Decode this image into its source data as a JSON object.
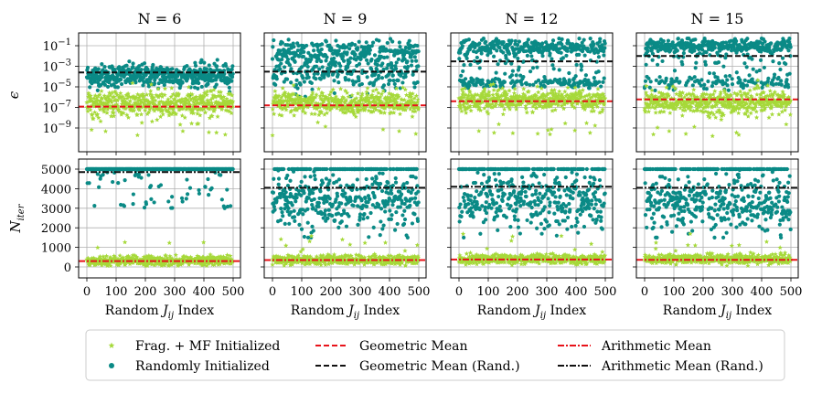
{
  "colors": {
    "frag": "#a6d93a",
    "rand": "#0a8a86",
    "mean_red": "#e8131a",
    "mean_black": "#111111",
    "grid": "#b0b0b0"
  },
  "symbols": {
    "eps": "ϵ",
    "n_iter_main": "N",
    "n_iter_sub": "iter",
    "xlabel_main": "Random ",
    "xlabel_J": "J",
    "xlabel_sub": "ij",
    "xlabel_tail": " Index"
  },
  "legend": {
    "frag": "Frag. + MF Initialized",
    "rand": "Randomly Initialized",
    "geo": "Geometric Mean",
    "geo_rand": "Geometric Mean (Rand.)",
    "arith": "Arithmetic Mean",
    "arith_rand": "Arithmetic Mean (Rand.)"
  },
  "chart_data": [
    {
      "type": "scatter",
      "title": "N = 6",
      "N": 6,
      "x": {
        "range": [
          0,
          500
        ],
        "ticks": [
          0,
          100,
          200,
          300,
          400,
          500
        ],
        "label": "Random J_ij Index"
      },
      "epsilon": {
        "scale": "log",
        "ylim": [
          1e-11,
          1
        ],
        "ticks": [
          "10^-1",
          "10^-3",
          "10^-5",
          "10^-7",
          "10^-9"
        ],
        "frag": {
          "center_exp": -6.7,
          "spread": 0.9
        },
        "rand": {
          "center_exp": -3.9,
          "spread": 0.7
        },
        "geometric_mean": 1.2e-07,
        "geometric_mean_rand": 0.00025
      },
      "n_iter": {
        "scale": "linear",
        "ylim": [
          -500,
          5300
        ],
        "ticks": [
          0,
          1000,
          2000,
          3000,
          4000,
          5000
        ],
        "frag": {
          "center": 320,
          "spread": 200
        },
        "rand": {
          "cap": 5000,
          "fraction_at_cap": 0.9
        },
        "arithmetic_mean": 300,
        "arithmetic_mean_rand": 4850
      }
    },
    {
      "type": "scatter",
      "title": "N = 9",
      "N": 9,
      "x": {
        "range": [
          0,
          500
        ],
        "ticks": [
          0,
          100,
          200,
          300,
          400,
          500
        ],
        "label": "Random J_ij Index"
      },
      "epsilon": {
        "scale": "log",
        "ylim": [
          1e-11,
          1
        ],
        "frag": {
          "center_exp": -6.6,
          "spread": 0.8
        },
        "rand": {
          "center_exp": -3.0,
          "spread": 1.6
        },
        "geometric_mean": 1.6e-07,
        "geometric_mean_rand": 0.0003
      },
      "n_iter": {
        "scale": "linear",
        "ylim": [
          -500,
          5300
        ],
        "frag": {
          "center": 350,
          "spread": 200
        },
        "rand": {
          "center": 3400,
          "spread": 700,
          "cap": 5000
        },
        "arithmetic_mean": 350,
        "arithmetic_mean_rand": 4050
      }
    },
    {
      "type": "scatter",
      "title": "N = 12",
      "N": 12,
      "x": {
        "range": [
          0,
          500
        ],
        "ticks": [
          0,
          100,
          200,
          300,
          400,
          500
        ],
        "label": "Random J_ij Index"
      },
      "epsilon": {
        "scale": "log",
        "ylim": [
          1e-11,
          1
        ],
        "frag": {
          "center_exp": -6.3,
          "spread": 0.7
        },
        "rand": {
          "center_exp": -2.0,
          "spread": 1.5
        },
        "geometric_mean": 4e-07,
        "geometric_mean_rand": 0.003
      },
      "n_iter": {
        "scale": "linear",
        "ylim": [
          -500,
          5300
        ],
        "frag": {
          "center": 400,
          "spread": 200
        },
        "rand": {
          "center": 3300,
          "spread": 750,
          "cap": 5000
        },
        "arithmetic_mean": 380,
        "arithmetic_mean_rand": 4100
      }
    },
    {
      "type": "scatter",
      "title": "N = 15",
      "N": 15,
      "x": {
        "range": [
          0,
          500
        ],
        "ticks": [
          0,
          100,
          200,
          300,
          400,
          500
        ],
        "label": "Random J_ij Index"
      },
      "epsilon": {
        "scale": "log",
        "ylim": [
          1e-11,
          1
        ],
        "frag": {
          "center_exp": -6.5,
          "spread": 0.8
        },
        "rand": {
          "center_exp": -1.5,
          "spread": 1.2
        },
        "geometric_mean": 6e-07,
        "geometric_mean_rand": 0.01
      },
      "n_iter": {
        "scale": "linear",
        "ylim": [
          -500,
          5300
        ],
        "frag": {
          "center": 400,
          "spread": 200
        },
        "rand": {
          "center": 3300,
          "spread": 750,
          "cap": 5000
        },
        "arithmetic_mean": 360,
        "arithmetic_mean_rand": 4050
      }
    }
  ]
}
